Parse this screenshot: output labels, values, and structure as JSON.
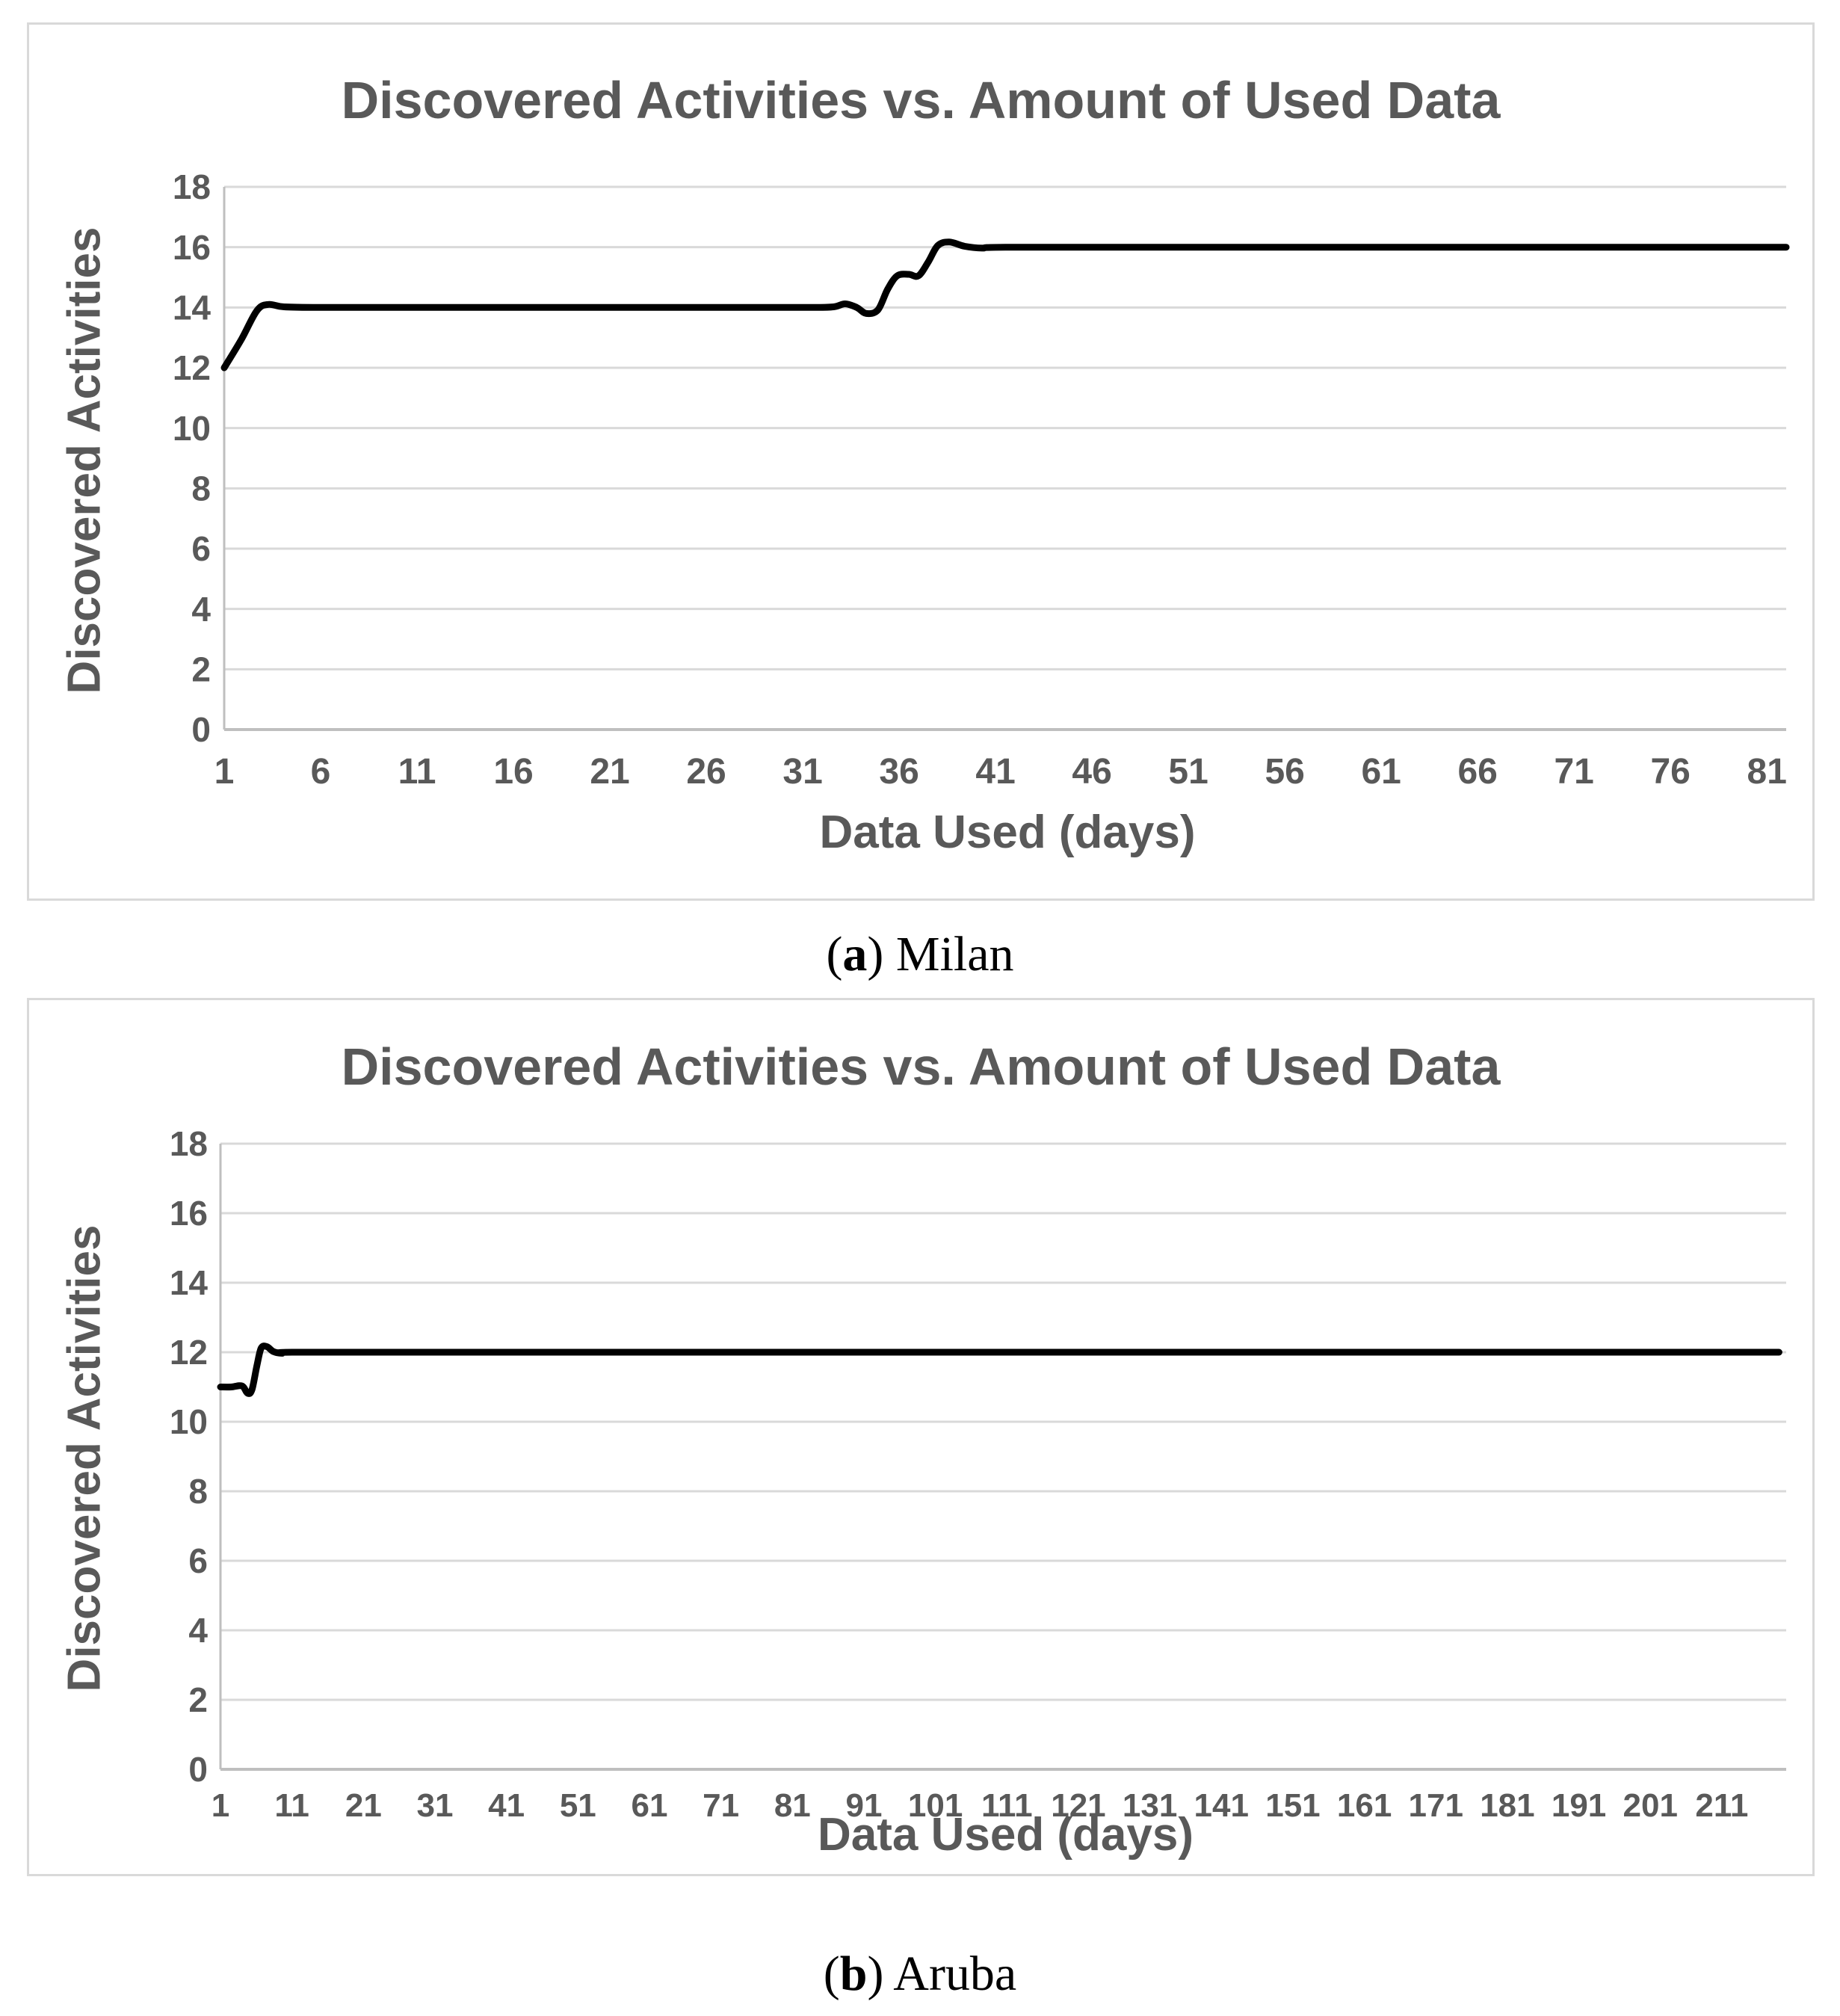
{
  "page": {
    "background": "#ffffff"
  },
  "colors": {
    "title_text": "#595959",
    "tick_text": "#595959",
    "gridline": "#d9d9d9",
    "axis_line": "#bfbfbf",
    "series_line": "#000000",
    "panel_border": "#d9d9d9",
    "caption_text": "#000000"
  },
  "chart_data": [
    {
      "type": "line",
      "title": "Discovered Activities vs. Amount of Used Data",
      "xlabel": "Data Used (days)",
      "ylabel": "Discovered Activities",
      "x_ticks": [
        1,
        6,
        11,
        16,
        21,
        26,
        31,
        36,
        41,
        46,
        51,
        56,
        61,
        66,
        71,
        76,
        81
      ],
      "y_ticks": [
        18,
        16,
        14,
        12,
        10,
        8,
        6,
        4,
        2,
        0
      ],
      "xlim": [
        1,
        82
      ],
      "ylim": [
        0,
        18
      ],
      "grid": "horizontal",
      "legend": "none",
      "series": [
        {
          "name": "Milan",
          "color": "#000000",
          "points": [
            [
              1,
              12
            ],
            [
              1.9,
              12.95
            ],
            [
              2.7,
              13.9
            ],
            [
              3.3,
              14.1
            ],
            [
              4.1,
              14.02
            ],
            [
              6,
              14
            ],
            [
              12,
              14
            ],
            [
              20,
              14
            ],
            [
              28,
              14
            ],
            [
              31.5,
              14
            ],
            [
              32.6,
              14.02
            ],
            [
              33.2,
              14.12
            ],
            [
              33.8,
              14.0
            ],
            [
              34.3,
              13.8
            ],
            [
              34.9,
              13.92
            ],
            [
              35.4,
              14.6
            ],
            [
              35.9,
              15.05
            ],
            [
              36.5,
              15.1
            ],
            [
              37,
              15.05
            ],
            [
              37.5,
              15.5
            ],
            [
              38,
              16.05
            ],
            [
              38.6,
              16.17
            ],
            [
              39.4,
              16.03
            ],
            [
              40.3,
              15.97
            ],
            [
              41.5,
              16
            ],
            [
              50,
              16
            ],
            [
              62,
              16
            ],
            [
              74,
              16
            ],
            [
              82,
              16
            ]
          ]
        }
      ]
    },
    {
      "type": "line",
      "title": "Discovered Activities vs. Amount of Used Data",
      "xlabel": "Data Used (days)",
      "ylabel": "Discovered Activities",
      "x_ticks": [
        1,
        11,
        21,
        31,
        41,
        51,
        61,
        71,
        81,
        91,
        101,
        111,
        121,
        131,
        141,
        151,
        161,
        171,
        181,
        191,
        201,
        211
      ],
      "y_ticks": [
        18,
        16,
        14,
        12,
        10,
        8,
        6,
        4,
        2,
        0
      ],
      "xlim": [
        1,
        220
      ],
      "ylim": [
        0,
        18
      ],
      "grid": "horizontal",
      "legend": "none",
      "series": [
        {
          "name": "Aruba",
          "color": "#000000",
          "points": [
            [
              1,
              11
            ],
            [
              2.5,
              11
            ],
            [
              4,
              11.03
            ],
            [
              4.8,
              10.82
            ],
            [
              5.4,
              10.92
            ],
            [
              6.1,
              11.62
            ],
            [
              6.7,
              12.12
            ],
            [
              7.5,
              12.16
            ],
            [
              8.4,
              12.02
            ],
            [
              9.6,
              11.97
            ],
            [
              11,
              12
            ],
            [
              30,
              12
            ],
            [
              70,
              12
            ],
            [
              110,
              12
            ],
            [
              150,
              12
            ],
            [
              190,
              12
            ],
            [
              219,
              12
            ]
          ]
        }
      ]
    }
  ],
  "panels": [
    {
      "caption": {
        "open": "(",
        "letter": "a",
        "rest": ") Milan"
      },
      "chart_index": 0
    },
    {
      "caption": {
        "open": "(",
        "letter": "b",
        "rest": ") Aruba"
      },
      "chart_index": 1
    }
  ]
}
